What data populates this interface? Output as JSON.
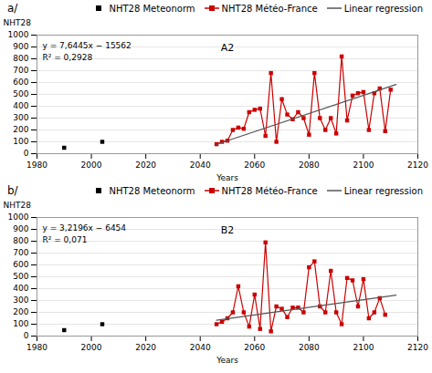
{
  "chart_data": [
    {
      "type": "line",
      "title": "a/",
      "x_label": "Years",
      "y_label": "NHT28",
      "annotations": [
        "A2",
        "y = 7,6445x − 15562",
        "R² = 0,2928"
      ],
      "xlim": [
        1980,
        2120
      ],
      "xticks": [
        1980,
        2000,
        2020,
        2040,
        2060,
        2080,
        2100,
        2120
      ],
      "ylim": [
        0,
        1000
      ],
      "yticks": [
        0,
        100,
        200,
        300,
        400,
        500,
        600,
        700,
        800,
        900,
        1000
      ],
      "grid": "y",
      "legend": "top",
      "series": [
        {
          "name": "NHT28 Meteonorm",
          "type": "scatter",
          "marker": "square",
          "color": "#000000",
          "x": [
            1990,
            2004
          ],
          "values": [
            50,
            100
          ]
        },
        {
          "name": "NHT28 Météo-France",
          "type": "line",
          "marker": "square",
          "color": "#cc0000",
          "x": [
            2046,
            2048,
            2050,
            2052,
            2054,
            2056,
            2058,
            2060,
            2062,
            2064,
            2066,
            2068,
            2070,
            2072,
            2074,
            2076,
            2078,
            2080,
            2082,
            2084,
            2086,
            2088,
            2090,
            2092,
            2094,
            2096,
            2098,
            2100,
            2102,
            2104,
            2106,
            2108,
            2110
          ],
          "values": [
            80,
            100,
            110,
            200,
            220,
            210,
            350,
            370,
            380,
            150,
            680,
            100,
            460,
            330,
            290,
            350,
            300,
            160,
            680,
            300,
            200,
            300,
            170,
            820,
            280,
            490,
            510,
            520,
            200,
            510,
            550,
            190,
            540
          ]
        },
        {
          "name": "Linear regression",
          "type": "line",
          "color": "#555555",
          "x": [
            2046,
            2112
          ],
          "values": [
            78.647,
            583.184
          ]
        }
      ]
    },
    {
      "type": "line",
      "title": "b/",
      "x_label": "Years",
      "y_label": "NHT28",
      "annotations": [
        "B2",
        "y = 3,2196x − 6454",
        "R² = 0,071"
      ],
      "xlim": [
        1980,
        2120
      ],
      "xticks": [
        1980,
        2000,
        2020,
        2040,
        2060,
        2080,
        2100,
        2120
      ],
      "ylim": [
        0,
        1000
      ],
      "yticks": [
        0,
        100,
        200,
        300,
        400,
        500,
        600,
        700,
        800,
        900,
        1000
      ],
      "grid": "y",
      "legend": "top",
      "series": [
        {
          "name": "NHT28 Meteonorm",
          "type": "scatter",
          "marker": "square",
          "color": "#000000",
          "x": [
            1990,
            2004
          ],
          "values": [
            50,
            100
          ]
        },
        {
          "name": "NHT28 Météo-France",
          "type": "line",
          "marker": "square",
          "color": "#cc0000",
          "x": [
            2046,
            2048,
            2050,
            2052,
            2054,
            2056,
            2058,
            2060,
            2062,
            2064,
            2066,
            2068,
            2070,
            2072,
            2074,
            2076,
            2078,
            2080,
            2082,
            2084,
            2086,
            2088,
            2090,
            2092,
            2094,
            2096,
            2098,
            2100,
            2102,
            2104,
            2106,
            2108
          ],
          "values": [
            100,
            120,
            150,
            200,
            420,
            200,
            80,
            350,
            60,
            790,
            40,
            250,
            230,
            160,
            240,
            240,
            200,
            580,
            630,
            250,
            200,
            550,
            200,
            100,
            490,
            470,
            250,
            480,
            150,
            200,
            320,
            180
          ]
        },
        {
          "name": "Linear regression",
          "type": "line",
          "color": "#555555",
          "x": [
            2046,
            2112
          ],
          "values": [
            133.3016,
            345.7952
          ]
        }
      ]
    }
  ]
}
